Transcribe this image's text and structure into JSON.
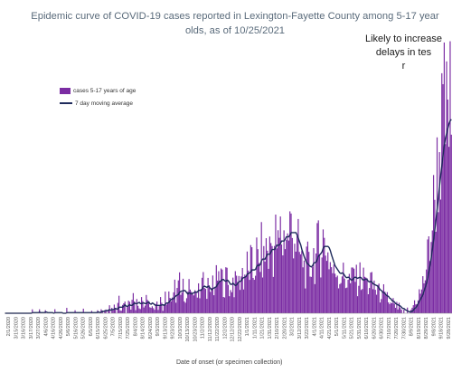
{
  "chart_data": {
    "type": "bar",
    "title_lines": [
      "Epidemic curve of COVID-19 cases reported in Lexington-Fayette County among 5-17 year",
      "olds, as of 10/25/2021"
    ],
    "annotation_lines": [
      "Likely to increase",
      "delays in tes",
      "r"
    ],
    "xlabel": "Date of onset (or specimen collection)",
    "legend": [
      "cases 5-17 years of age",
      "7 day moving average"
    ],
    "colors": {
      "bar": "#7b2ca3",
      "line": "#1f2b5c"
    },
    "x_tick_labels": [
      "2/1/2020",
      "3/15/2020",
      "3/16/2020",
      "3/17/2020",
      "3/27/2020",
      "4/6/2020",
      "4/16/2020",
      "4/26/2020",
      "5/6/2020",
      "5/16/2020",
      "5/26/2020",
      "6/5/2020",
      "6/15/2020",
      "6/25/2020",
      "7/5/2020",
      "7/15/2020",
      "7/25/2020",
      "8/4/2020",
      "8/14/2020",
      "8/24/2020",
      "9/3/2020",
      "9/13/2020",
      "9/23/2020",
      "10/3/2020",
      "10/13/2020",
      "10/23/2020",
      "11/2/2020",
      "11/12/2020",
      "11/22/2020",
      "12/2/2020",
      "12/12/2020",
      "12/22/2020",
      "1/1/2021",
      "1/11/2021",
      "1/21/2021",
      "1/31/2021",
      "2/10/2021",
      "2/20/2021",
      "3/2/2021",
      "3/12/2021",
      "3/22/2021",
      "4/1/2021",
      "4/11/2021",
      "4/21/2021",
      "5/1/2021",
      "5/11/2021",
      "5/21/2021",
      "5/31/2021",
      "6/10/2021",
      "6/20/2021",
      "6/30/2021",
      "7/10/2021",
      "7/20/2021",
      "7/30/2021",
      "8/9/2021",
      "8/19/2021",
      "8/29/2021",
      "9/8/2021",
      "9/18/2021",
      "9/28/2021"
    ],
    "series": [
      {
        "name": "cases 5-17 years of age",
        "type": "bar",
        "values": [
          0,
          0,
          0,
          0,
          0,
          0,
          0,
          0,
          0,
          0,
          0,
          0,
          0,
          0,
          0,
          0,
          0,
          0,
          0,
          0,
          0,
          0,
          0,
          1,
          0,
          0,
          0,
          0,
          0,
          1,
          0,
          0,
          0,
          0,
          1,
          0,
          0,
          0,
          0,
          0,
          0,
          0,
          1,
          0,
          0,
          0,
          0,
          0,
          0,
          0,
          0,
          0,
          1,
          0,
          0,
          0,
          0,
          0,
          0,
          1,
          0,
          0,
          0,
          0,
          0,
          0,
          1,
          0,
          0,
          0,
          0,
          0,
          0,
          1,
          0,
          0,
          0,
          0,
          1,
          0,
          0,
          1,
          1,
          0,
          1,
          1,
          0,
          1,
          2,
          0,
          1,
          1,
          2,
          1,
          0,
          2,
          3,
          1,
          1,
          2,
          3,
          2,
          0,
          2,
          3,
          2,
          1,
          3,
          4,
          2,
          1,
          3,
          3,
          2,
          1,
          4,
          3,
          1,
          2,
          3,
          4,
          2,
          1,
          2,
          3,
          1,
          1,
          3,
          2,
          1,
          2,
          3,
          2,
          1,
          2,
          4,
          3,
          2,
          4,
          5,
          3,
          3,
          4,
          6,
          4,
          5,
          6,
          7,
          4,
          5,
          6,
          5,
          4,
          3,
          5,
          6,
          4,
          5,
          6,
          5,
          4,
          5,
          6,
          7,
          5,
          6,
          7,
          8,
          6,
          5,
          6,
          7,
          5,
          4,
          6,
          8,
          6,
          7,
          8,
          9,
          7,
          8,
          9,
          8,
          7,
          6,
          8,
          9,
          7,
          6,
          5,
          7,
          8,
          6,
          7,
          8,
          9,
          7,
          8,
          9,
          10,
          8,
          9,
          10,
          11,
          9,
          10,
          12,
          11,
          9,
          10,
          12,
          14,
          12,
          11,
          13,
          15,
          13,
          12,
          14,
          16,
          15,
          13,
          15,
          17,
          16,
          14,
          16,
          18,
          17,
          15,
          17,
          19,
          18,
          16,
          18,
          20,
          19,
          17,
          19,
          21,
          20,
          18,
          20,
          19,
          17,
          15,
          16,
          14,
          13,
          12,
          13,
          11,
          10,
          11,
          12,
          11,
          10,
          12,
          13,
          14,
          12,
          13,
          15,
          16,
          14,
          15,
          17,
          18,
          16,
          15,
          16,
          14,
          13,
          12,
          11,
          10,
          9,
          10,
          11,
          10,
          9,
          8,
          9,
          10,
          9,
          8,
          7,
          8,
          9,
          8,
          7,
          8,
          9,
          10,
          9,
          8,
          7,
          8,
          9,
          8,
          7,
          8,
          9,
          8,
          7,
          6,
          7,
          8,
          7,
          6,
          7,
          6,
          5,
          6,
          5,
          4,
          5,
          4,
          5,
          4,
          3,
          4,
          3,
          2,
          3,
          2,
          3,
          2,
          1,
          2,
          1,
          2,
          1,
          1,
          0,
          1,
          0,
          0,
          1,
          0,
          0,
          1,
          1,
          2,
          3,
          2,
          3,
          4,
          5,
          4,
          6,
          7,
          8,
          9,
          11,
          13,
          15,
          17,
          19,
          22,
          25,
          27,
          30,
          33,
          36,
          38,
          40,
          42,
          44,
          46,
          45,
          44,
          46,
          48,
          47,
          46
        ]
      },
      {
        "name": "7 day moving average",
        "type": "line"
      }
    ],
    "ylim": [
      0,
      55
    ]
  }
}
